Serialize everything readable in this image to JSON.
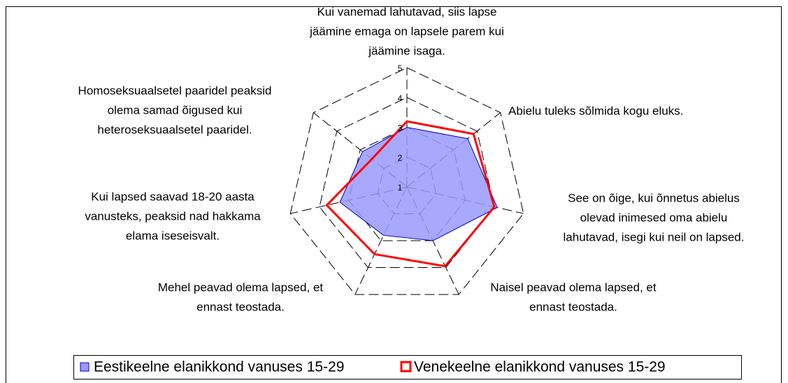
{
  "chart_data": {
    "type": "radar",
    "categories": [
      [
        "Kui vanemad lahutavad, siis lapse",
        "jäämine emaga on lapsele parem kui",
        "jäämine isaga."
      ],
      [
        "Abielu tuleks sõlmida kogu eluks."
      ],
      [
        "See on õige, kui õnnetus abielus",
        "olevad inimesed oma abielu",
        "lahutavad, isegi kui neil on lapsed."
      ],
      [
        "Naisel peavad olema lapsed, et",
        "ennast teostada."
      ],
      [
        "Mehel peavad olema lapsed, et",
        "ennast teostada."
      ],
      [
        "Kui lapsed saavad 18-20 aasta",
        "vanusteks, peaksid nad hakkama",
        "elama iseseisvalt."
      ],
      [
        "Homoseksuaalsetel paaridel peaksid",
        "olema samad õigused kui",
        "heteroseksuaalsetel paaridel."
      ]
    ],
    "series": [
      {
        "name": "Eestikeelne elanikkond vanuses 15-29",
        "color": "#9999ff",
        "values": [
          3.0,
          3.6,
          4.1,
          3.0,
          2.8,
          3.3,
          2.9
        ]
      },
      {
        "name": "Venekeelne elanikkond vanuses 15-29",
        "color": "#ff0000",
        "values": [
          3.2,
          3.85,
          4.0,
          3.95,
          3.5,
          3.75,
          2.5
        ]
      }
    ],
    "ylim": [
      1,
      5
    ],
    "yticks": [
      1,
      2,
      3,
      4,
      5
    ],
    "grid": true
  }
}
